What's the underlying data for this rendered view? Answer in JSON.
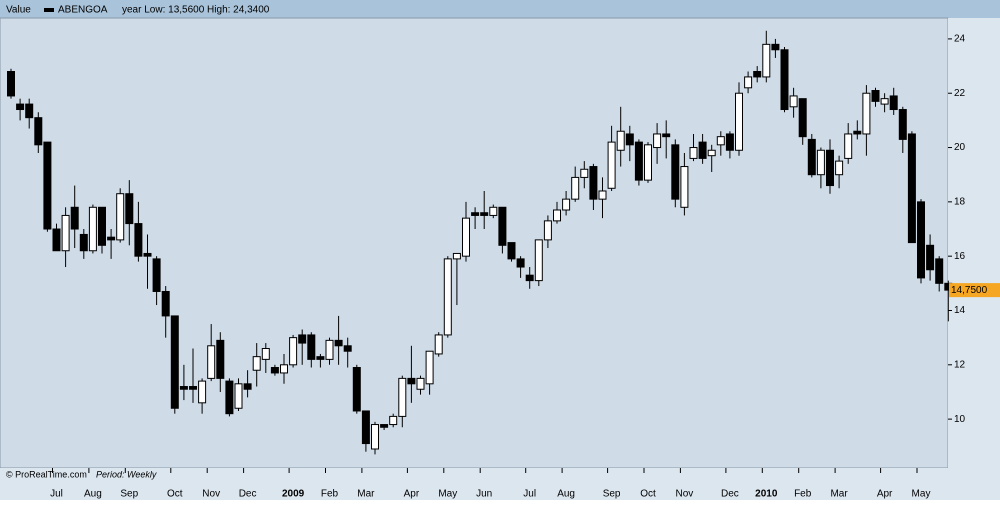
{
  "chart_data": {
    "type": "candlestick",
    "header": {
      "label": "Value",
      "symbol": "ABENGOA",
      "range": "year Low: 13,5600 High: 24,3400"
    },
    "footer": {
      "source": "© ProRealTime.com",
      "period": "Period: Weekly"
    },
    "categories": [
      null,
      null,
      null,
      null,
      null,
      null,
      null,
      null,
      null,
      null,
      null,
      null,
      null,
      null,
      null,
      null,
      null,
      null,
      null,
      null,
      null,
      null,
      null,
      null,
      null,
      null,
      null,
      null,
      null,
      null,
      null,
      null,
      null,
      null,
      null,
      null,
      null,
      null,
      null,
      null,
      null,
      null,
      null,
      null,
      null,
      null,
      null,
      null,
      null,
      null,
      null,
      null,
      null,
      null,
      null,
      null,
      null,
      null,
      null,
      null,
      null,
      null,
      null,
      null,
      null,
      null,
      null,
      null,
      null,
      null,
      null,
      null,
      null,
      null,
      null,
      null,
      null,
      null,
      null,
      null,
      null,
      null,
      null,
      null,
      null,
      null,
      null,
      null,
      null,
      null,
      null,
      null,
      null,
      null,
      null,
      null,
      null,
      null,
      null,
      null,
      null,
      null,
      null,
      null
    ],
    "series": {
      "open": [
        22.8,
        21.6,
        21.6,
        21.1,
        20.2,
        17.0,
        16.2,
        17.8,
        16.8,
        16.2,
        17.8,
        16.7,
        16.6,
        18.3,
        17.2,
        16.1,
        15.9,
        14.7,
        13.8,
        11.2,
        11.2,
        10.6,
        11.5,
        12.9,
        11.4,
        10.4,
        11.3,
        11.8,
        12.2,
        11.9,
        11.7,
        12.0,
        13.1,
        13.1,
        12.3,
        12.2,
        12.9,
        12.7,
        11.9,
        10.3,
        8.9,
        9.8,
        9.8,
        10.1,
        11.5,
        11.1,
        11.3,
        12.4,
        13.1,
        15.9,
        16.0,
        17.6,
        17.6,
        17.5,
        17.8,
        16.5,
        15.9,
        15.3,
        15.1,
        16.6,
        17.3,
        17.7,
        18.1,
        18.9,
        19.3,
        18.1,
        18.5,
        19.9,
        20.5,
        20.2,
        18.8,
        20.0,
        20.5,
        20.1,
        17.8,
        19.6,
        20.2,
        19.7,
        20.1,
        20.5,
        19.9,
        22.2,
        22.8,
        22.6,
        23.8,
        23.6,
        21.5,
        21.8,
        20.3,
        19.0,
        19.9,
        19.0,
        19.6,
        20.6,
        20.5,
        22.1,
        21.6,
        21.9,
        21.4,
        20.5,
        18.0,
        16.4,
        15.9,
        15.0
      ],
      "high": [
        22.9,
        21.8,
        21.8,
        21.3,
        20.2,
        17.2,
        17.8,
        18.6,
        17.0,
        17.9,
        17.8,
        17.0,
        18.5,
        18.8,
        18.0,
        16.8,
        16.0,
        14.9,
        13.8,
        12.0,
        12.6,
        11.5,
        13.5,
        13.2,
        11.5,
        11.5,
        11.8,
        12.8,
        12.8,
        12.0,
        12.4,
        13.1,
        13.3,
        13.2,
        12.4,
        13.0,
        13.8,
        13.0,
        12.0,
        10.3,
        9.9,
        9.8,
        10.2,
        11.6,
        12.7,
        11.6,
        12.5,
        13.2,
        16.0,
        16.1,
        18.0,
        17.8,
        18.4,
        17.9,
        17.8,
        16.5,
        16.0,
        15.6,
        16.6,
        17.5,
        18.0,
        18.4,
        19.3,
        19.5,
        19.4,
        18.9,
        20.8,
        21.5,
        20.8,
        20.3,
        20.2,
        20.9,
        21.0,
        20.3,
        19.8,
        20.5,
        20.5,
        20.1,
        20.6,
        20.6,
        22.4,
        22.8,
        23.0,
        24.3,
        24.0,
        23.7,
        22.2,
        21.8,
        20.5,
        20.0,
        20.3,
        19.7,
        20.9,
        21.0,
        22.3,
        22.2,
        22.0,
        22.2,
        21.5,
        20.6,
        18.1,
        16.8,
        16.0,
        15.1
      ],
      "low": [
        21.8,
        21.0,
        20.7,
        19.8,
        16.9,
        16.2,
        15.6,
        16.3,
        15.9,
        16.1,
        16.1,
        15.9,
        16.5,
        16.4,
        15.8,
        14.8,
        14.2,
        13.0,
        10.2,
        10.7,
        10.6,
        10.2,
        11.4,
        11.0,
        10.1,
        10.3,
        10.8,
        11.2,
        11.7,
        11.6,
        11.3,
        11.9,
        12.0,
        11.9,
        11.9,
        12.0,
        12.0,
        11.9,
        10.2,
        8.8,
        8.7,
        9.6,
        9.7,
        9.7,
        10.6,
        10.9,
        10.9,
        12.3,
        13.0,
        14.2,
        15.8,
        17.0,
        17.0,
        17.4,
        16.1,
        15.8,
        15.2,
        14.8,
        14.9,
        16.3,
        17.2,
        17.5,
        18.0,
        18.5,
        17.7,
        17.4,
        18.4,
        19.3,
        19.5,
        18.6,
        18.7,
        19.4,
        19.6,
        17.8,
        17.5,
        19.5,
        19.4,
        19.1,
        19.7,
        19.6,
        19.7,
        22.0,
        22.4,
        22.4,
        23.3,
        21.3,
        21.1,
        20.1,
        18.9,
        18.5,
        18.3,
        18.5,
        19.4,
        20.3,
        19.7,
        21.5,
        21.3,
        21.2,
        19.8,
        16.5,
        15.0,
        15.1,
        14.7,
        13.6
      ],
      "close": [
        21.9,
        21.4,
        21.1,
        20.1,
        17.0,
        16.2,
        17.5,
        17.0,
        16.2,
        17.8,
        16.4,
        16.6,
        18.3,
        17.2,
        16.0,
        16.0,
        14.7,
        13.8,
        10.4,
        11.1,
        11.1,
        11.4,
        12.7,
        11.5,
        10.2,
        11.3,
        11.1,
        12.3,
        12.6,
        11.7,
        12.0,
        13.0,
        12.8,
        12.2,
        12.2,
        12.9,
        12.7,
        12.5,
        10.3,
        9.1,
        9.8,
        9.7,
        10.1,
        11.5,
        11.3,
        11.5,
        12.5,
        13.1,
        15.9,
        16.1,
        17.4,
        17.5,
        17.5,
        17.8,
        16.4,
        15.9,
        15.6,
        15.1,
        16.6,
        17.3,
        17.7,
        18.1,
        18.9,
        19.2,
        18.1,
        18.4,
        20.2,
        20.6,
        20.1,
        18.8,
        20.1,
        20.5,
        20.4,
        18.1,
        19.3,
        20.0,
        19.6,
        19.9,
        20.4,
        19.9,
        22.0,
        22.6,
        22.6,
        23.8,
        23.6,
        21.4,
        21.9,
        20.4,
        19.0,
        19.9,
        18.6,
        19.5,
        20.5,
        20.5,
        22.0,
        21.7,
        21.8,
        21.4,
        20.3,
        16.5,
        15.2,
        15.5,
        15.0,
        14.75
      ]
    },
    "up_color": "#ffffff",
    "down_color": "#000000",
    "last_price": {
      "value": 14.75,
      "label": "14,7500"
    },
    "ylim": [
      8.2,
      24.77
    ],
    "yticks": [
      10,
      12,
      14,
      16,
      18,
      20,
      22,
      24
    ],
    "xticks": [
      {
        "value": 5,
        "label": "Jul"
      },
      {
        "value": 9,
        "label": "Aug"
      },
      {
        "value": 13,
        "label": "Sep"
      },
      {
        "value": 18,
        "label": "Oct"
      },
      {
        "value": 22,
        "label": "Nov"
      },
      {
        "value": 26,
        "label": "Dec"
      },
      {
        "value": 31,
        "label": "2009"
      },
      {
        "value": 35,
        "label": "Feb"
      },
      {
        "value": 39,
        "label": "Mar"
      },
      {
        "value": 44,
        "label": "Apr"
      },
      {
        "value": 48,
        "label": "May"
      },
      {
        "value": 52,
        "label": "Jun"
      },
      {
        "value": 57,
        "label": "Jul"
      },
      {
        "value": 61,
        "label": "Aug"
      },
      {
        "value": 66,
        "label": "Sep"
      },
      {
        "value": 70,
        "label": "Oct"
      },
      {
        "value": 74,
        "label": "Nov"
      },
      {
        "value": 79,
        "label": "Dec"
      },
      {
        "value": 83,
        "label": "2010"
      },
      {
        "value": 87,
        "label": "Feb"
      },
      {
        "value": 91,
        "label": "Mar"
      },
      {
        "value": 96,
        "label": "Apr"
      },
      {
        "value": 100,
        "label": "May"
      }
    ]
  }
}
